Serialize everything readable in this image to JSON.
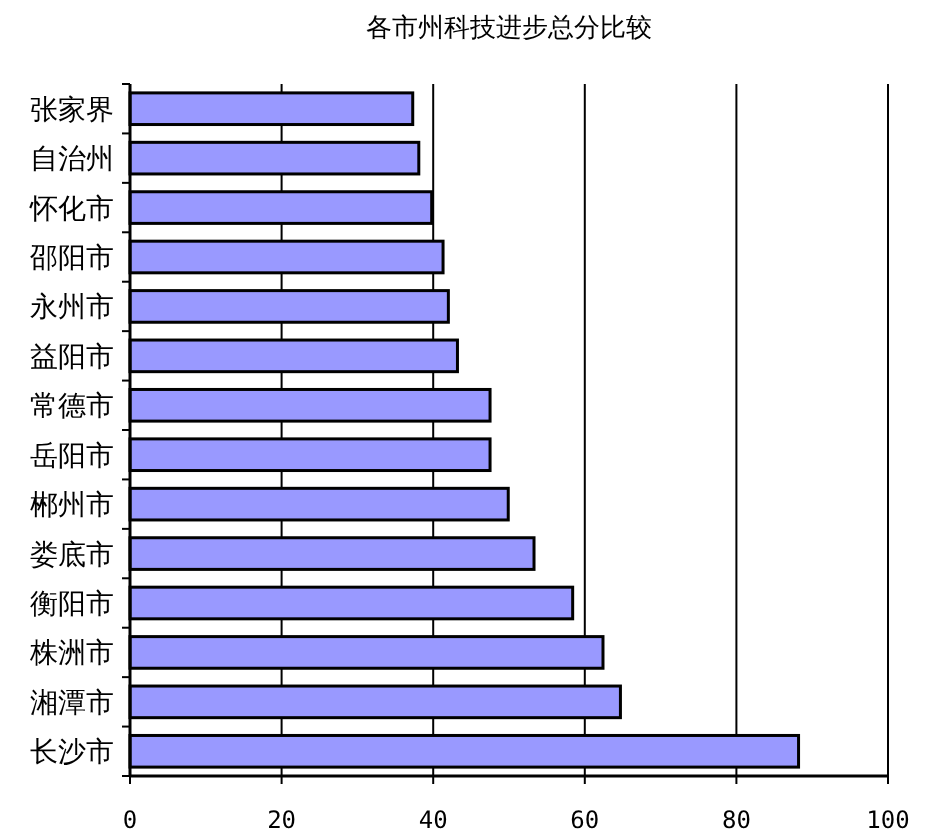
{
  "chart_data": {
    "type": "bar",
    "orientation": "horizontal",
    "title": "各市州科技进步总分比较",
    "categories": [
      "张家界",
      "自治州",
      "怀化市",
      "邵阳市",
      "永州市",
      "益阳市",
      "常德市",
      "岳阳市",
      "郴州市",
      "娄底市",
      "衡阳市",
      "株洲市",
      "湘潭市",
      "长沙市"
    ],
    "values": [
      37.3,
      38.1,
      39.8,
      41.3,
      42.0,
      43.2,
      47.5,
      47.5,
      49.9,
      53.3,
      58.4,
      62.4,
      64.7,
      88.2
    ],
    "color": "#9999ff",
    "xlim": [
      0,
      100
    ],
    "xticks": [
      0,
      20,
      40,
      60,
      80,
      100
    ],
    "grid": "x"
  }
}
